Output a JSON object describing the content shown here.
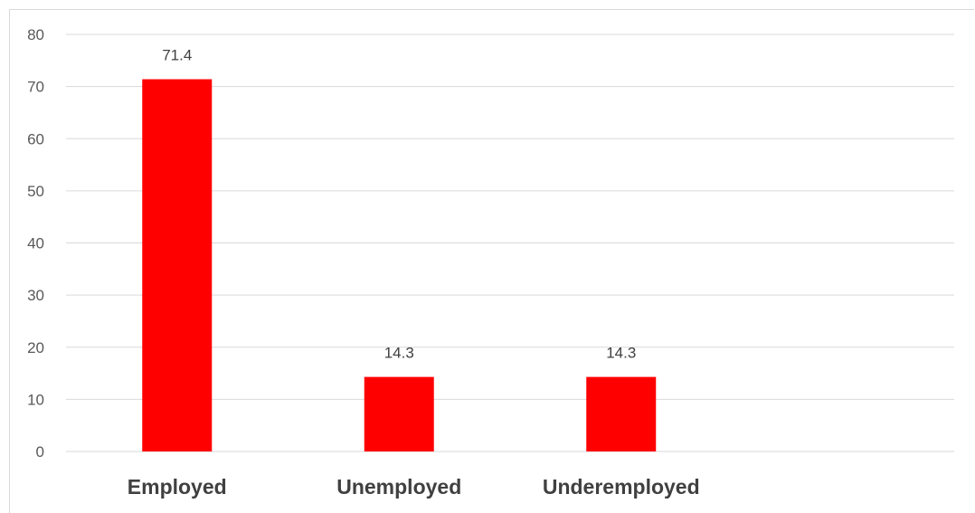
{
  "chart_data": {
    "type": "bar",
    "categories": [
      "Employed",
      "Unemployed",
      "Underemployed",
      ""
    ],
    "values": [
      71.4,
      14.3,
      14.3,
      null
    ],
    "data_labels": [
      "71.4",
      "14.3",
      "14.3",
      ""
    ],
    "title": "",
    "xlabel": "",
    "ylabel": "",
    "ylim": [
      0,
      80
    ],
    "yticks": [
      0,
      10,
      20,
      30,
      40,
      50,
      60,
      70,
      80
    ],
    "grid": true,
    "legend": "none",
    "colors": {
      "bar": "#ff0000",
      "grid": "#d9d9d9",
      "tick_text": "#595959",
      "label_text": "#404040"
    }
  }
}
